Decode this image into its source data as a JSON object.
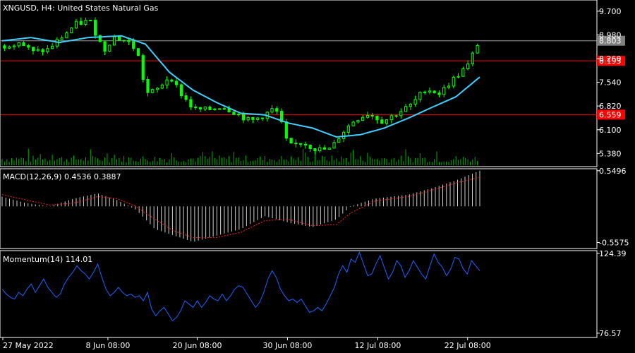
{
  "chart_data": [
    {
      "type": "candlestick",
      "title": "XNGUSD, H4:  United States Natural Gas",
      "yticks": [
        9.7,
        8.98,
        8.26,
        7.54,
        6.82,
        6.1,
        5.38
      ],
      "ytick_labels": [
        "9.700",
        "8.980",
        "8.260",
        "7.540",
        "6.820",
        "6.100",
        "5.380"
      ],
      "ylim": [
        4.98,
        10.04
      ],
      "price_label": "8.803",
      "price_value": 8.803,
      "levels": [
        {
          "label": "8.193",
          "value": 8.193
        },
        {
          "label": "6.559",
          "value": 6.559
        }
      ],
      "close_path": [
        [
          0,
          8.65
        ],
        [
          3,
          8.78
        ],
        [
          6,
          8.45
        ],
        [
          9,
          8.52
        ],
        [
          12,
          8.9
        ],
        [
          15,
          9.3
        ],
        [
          18,
          9.42
        ],
        [
          21,
          8.5
        ],
        [
          23,
          8.92
        ],
        [
          26,
          8.78
        ],
        [
          28,
          8.5
        ],
        [
          30,
          7.2
        ],
        [
          32,
          7.28
        ],
        [
          35,
          7.75
        ],
        [
          37,
          7.25
        ],
        [
          40,
          6.72
        ],
        [
          43,
          6.7
        ],
        [
          46,
          6.82
        ],
        [
          49,
          6.6
        ],
        [
          52,
          6.35
        ],
        [
          55,
          6.55
        ],
        [
          57,
          6.75
        ],
        [
          58,
          6.55
        ],
        [
          60,
          5.58
        ],
        [
          63,
          5.72
        ],
        [
          66,
          5.5
        ],
        [
          69,
          5.5
        ],
        [
          71,
          5.95
        ],
        [
          74,
          6.4
        ],
        [
          77,
          6.6
        ],
        [
          80,
          6.35
        ],
        [
          83,
          6.6
        ],
        [
          86,
          6.85
        ],
        [
          89,
          7.35
        ],
        [
          92,
          7.2
        ],
        [
          95,
          7.65
        ],
        [
          98,
          8.05
        ],
        [
          100,
          8.7
        ]
      ],
      "ma_path": [
        [
          0,
          8.8
        ],
        [
          6,
          8.9
        ],
        [
          12,
          8.75
        ],
        [
          18,
          8.9
        ],
        [
          25,
          8.95
        ],
        [
          30,
          8.7
        ],
        [
          35,
          7.85
        ],
        [
          40,
          7.3
        ],
        [
          45,
          6.92
        ],
        [
          50,
          6.6
        ],
        [
          55,
          6.55
        ],
        [
          60,
          6.3
        ],
        [
          65,
          6.15
        ],
        [
          70,
          5.88
        ],
        [
          75,
          5.95
        ],
        [
          80,
          6.15
        ],
        [
          85,
          6.45
        ],
        [
          90,
          6.78
        ],
        [
          95,
          7.1
        ],
        [
          100,
          7.7
        ]
      ],
      "n_candles": 100
    },
    {
      "type": "histogram",
      "title": "MACD(12,26,9) 0.4536 0.3887",
      "yticks": [
        0.5496,
        -0.5575
      ],
      "ytick_labels": [
        "0.5496",
        "-0.5575"
      ],
      "ylim": [
        -0.65,
        0.58
      ],
      "macd_path": [
        [
          0,
          0.15
        ],
        [
          5,
          0.05
        ],
        [
          10,
          0.0
        ],
        [
          15,
          0.12
        ],
        [
          20,
          0.2
        ],
        [
          24,
          0.1
        ],
        [
          28,
          -0.05
        ],
        [
          32,
          -0.35
        ],
        [
          36,
          -0.45
        ],
        [
          40,
          -0.55
        ],
        [
          45,
          -0.45
        ],
        [
          50,
          -0.35
        ],
        [
          55,
          -0.15
        ],
        [
          60,
          -0.25
        ],
        [
          65,
          -0.32
        ],
        [
          70,
          -0.2
        ],
        [
          73,
          0.0
        ],
        [
          78,
          0.12
        ],
        [
          85,
          0.18
        ],
        [
          90,
          0.28
        ],
        [
          95,
          0.4
        ],
        [
          100,
          0.55
        ]
      ],
      "signal_path": [
        [
          0,
          0.18
        ],
        [
          5,
          0.1
        ],
        [
          10,
          0.02
        ],
        [
          15,
          0.05
        ],
        [
          20,
          0.15
        ],
        [
          24,
          0.12
        ],
        [
          28,
          0.0
        ],
        [
          32,
          -0.2
        ],
        [
          36,
          -0.38
        ],
        [
          40,
          -0.48
        ],
        [
          45,
          -0.48
        ],
        [
          50,
          -0.4
        ],
        [
          55,
          -0.22
        ],
        [
          60,
          -0.2
        ],
        [
          65,
          -0.3
        ],
        [
          70,
          -0.28
        ],
        [
          73,
          -0.1
        ],
        [
          78,
          0.08
        ],
        [
          85,
          0.15
        ],
        [
          90,
          0.25
        ],
        [
          95,
          0.36
        ],
        [
          100,
          0.45
        ]
      ]
    },
    {
      "type": "line",
      "title": "Momentum(14) 114.01",
      "yticks": [
        124.39,
        76.57
      ],
      "ytick_labels": [
        "124.39",
        "76.57"
      ],
      "ylim": [
        74,
        126
      ],
      "values": [
        103,
        100,
        98,
        97,
        101,
        99,
        103,
        106,
        101,
        105,
        109,
        104,
        101,
        98,
        100,
        106,
        110,
        113,
        117,
        114,
        112,
        109,
        113,
        118,
        110,
        103,
        99,
        101,
        104,
        101,
        99,
        100,
        98,
        99,
        96,
        101,
        91,
        87,
        90,
        92,
        88,
        84,
        86,
        90,
        96,
        94,
        92,
        96,
        92,
        95,
        99,
        97,
        96,
        100,
        96,
        99,
        103,
        105,
        104,
        100,
        96,
        92,
        95,
        101,
        109,
        114,
        110,
        103,
        99,
        96,
        97,
        95,
        97,
        93,
        89,
        90,
        92,
        90,
        94,
        99,
        104,
        112,
        117,
        113,
        121,
        119,
        125,
        118,
        111,
        112,
        118,
        123,
        116,
        109,
        113,
        120,
        117,
        110,
        114,
        120,
        116,
        112,
        109,
        117,
        124,
        119,
        116,
        111,
        115,
        122,
        121,
        115,
        112,
        120,
        117,
        114
      ]
    }
  ],
  "x_labels": [
    {
      "label": "27 May 2022",
      "pos": 0.0
    },
    {
      "label": "8 Jun 08:00",
      "pos": 0.22
    },
    {
      "label": "20 Jun 08:00",
      "pos": 0.407
    },
    {
      "label": "30 Jun 08:00",
      "pos": 0.596
    },
    {
      "label": "12 Jul 08:00",
      "pos": 0.785
    },
    {
      "label": "22 Jul 08:00",
      "pos": 0.973
    }
  ],
  "colors": {
    "background": "#000000",
    "candle": "#00ff00",
    "ma": "#3fcfff",
    "level_line": "#ff0000",
    "level_label_bg": "#ff0000",
    "price_label_bg": "#808080",
    "price_line": "#9a9a9a",
    "volume": "#00b000",
    "macd_hist": "#d0d0d0",
    "macd_signal": "#ff2020",
    "momentum": "#2060ff",
    "axis": "#ffffff",
    "separator": "#ffffff"
  }
}
